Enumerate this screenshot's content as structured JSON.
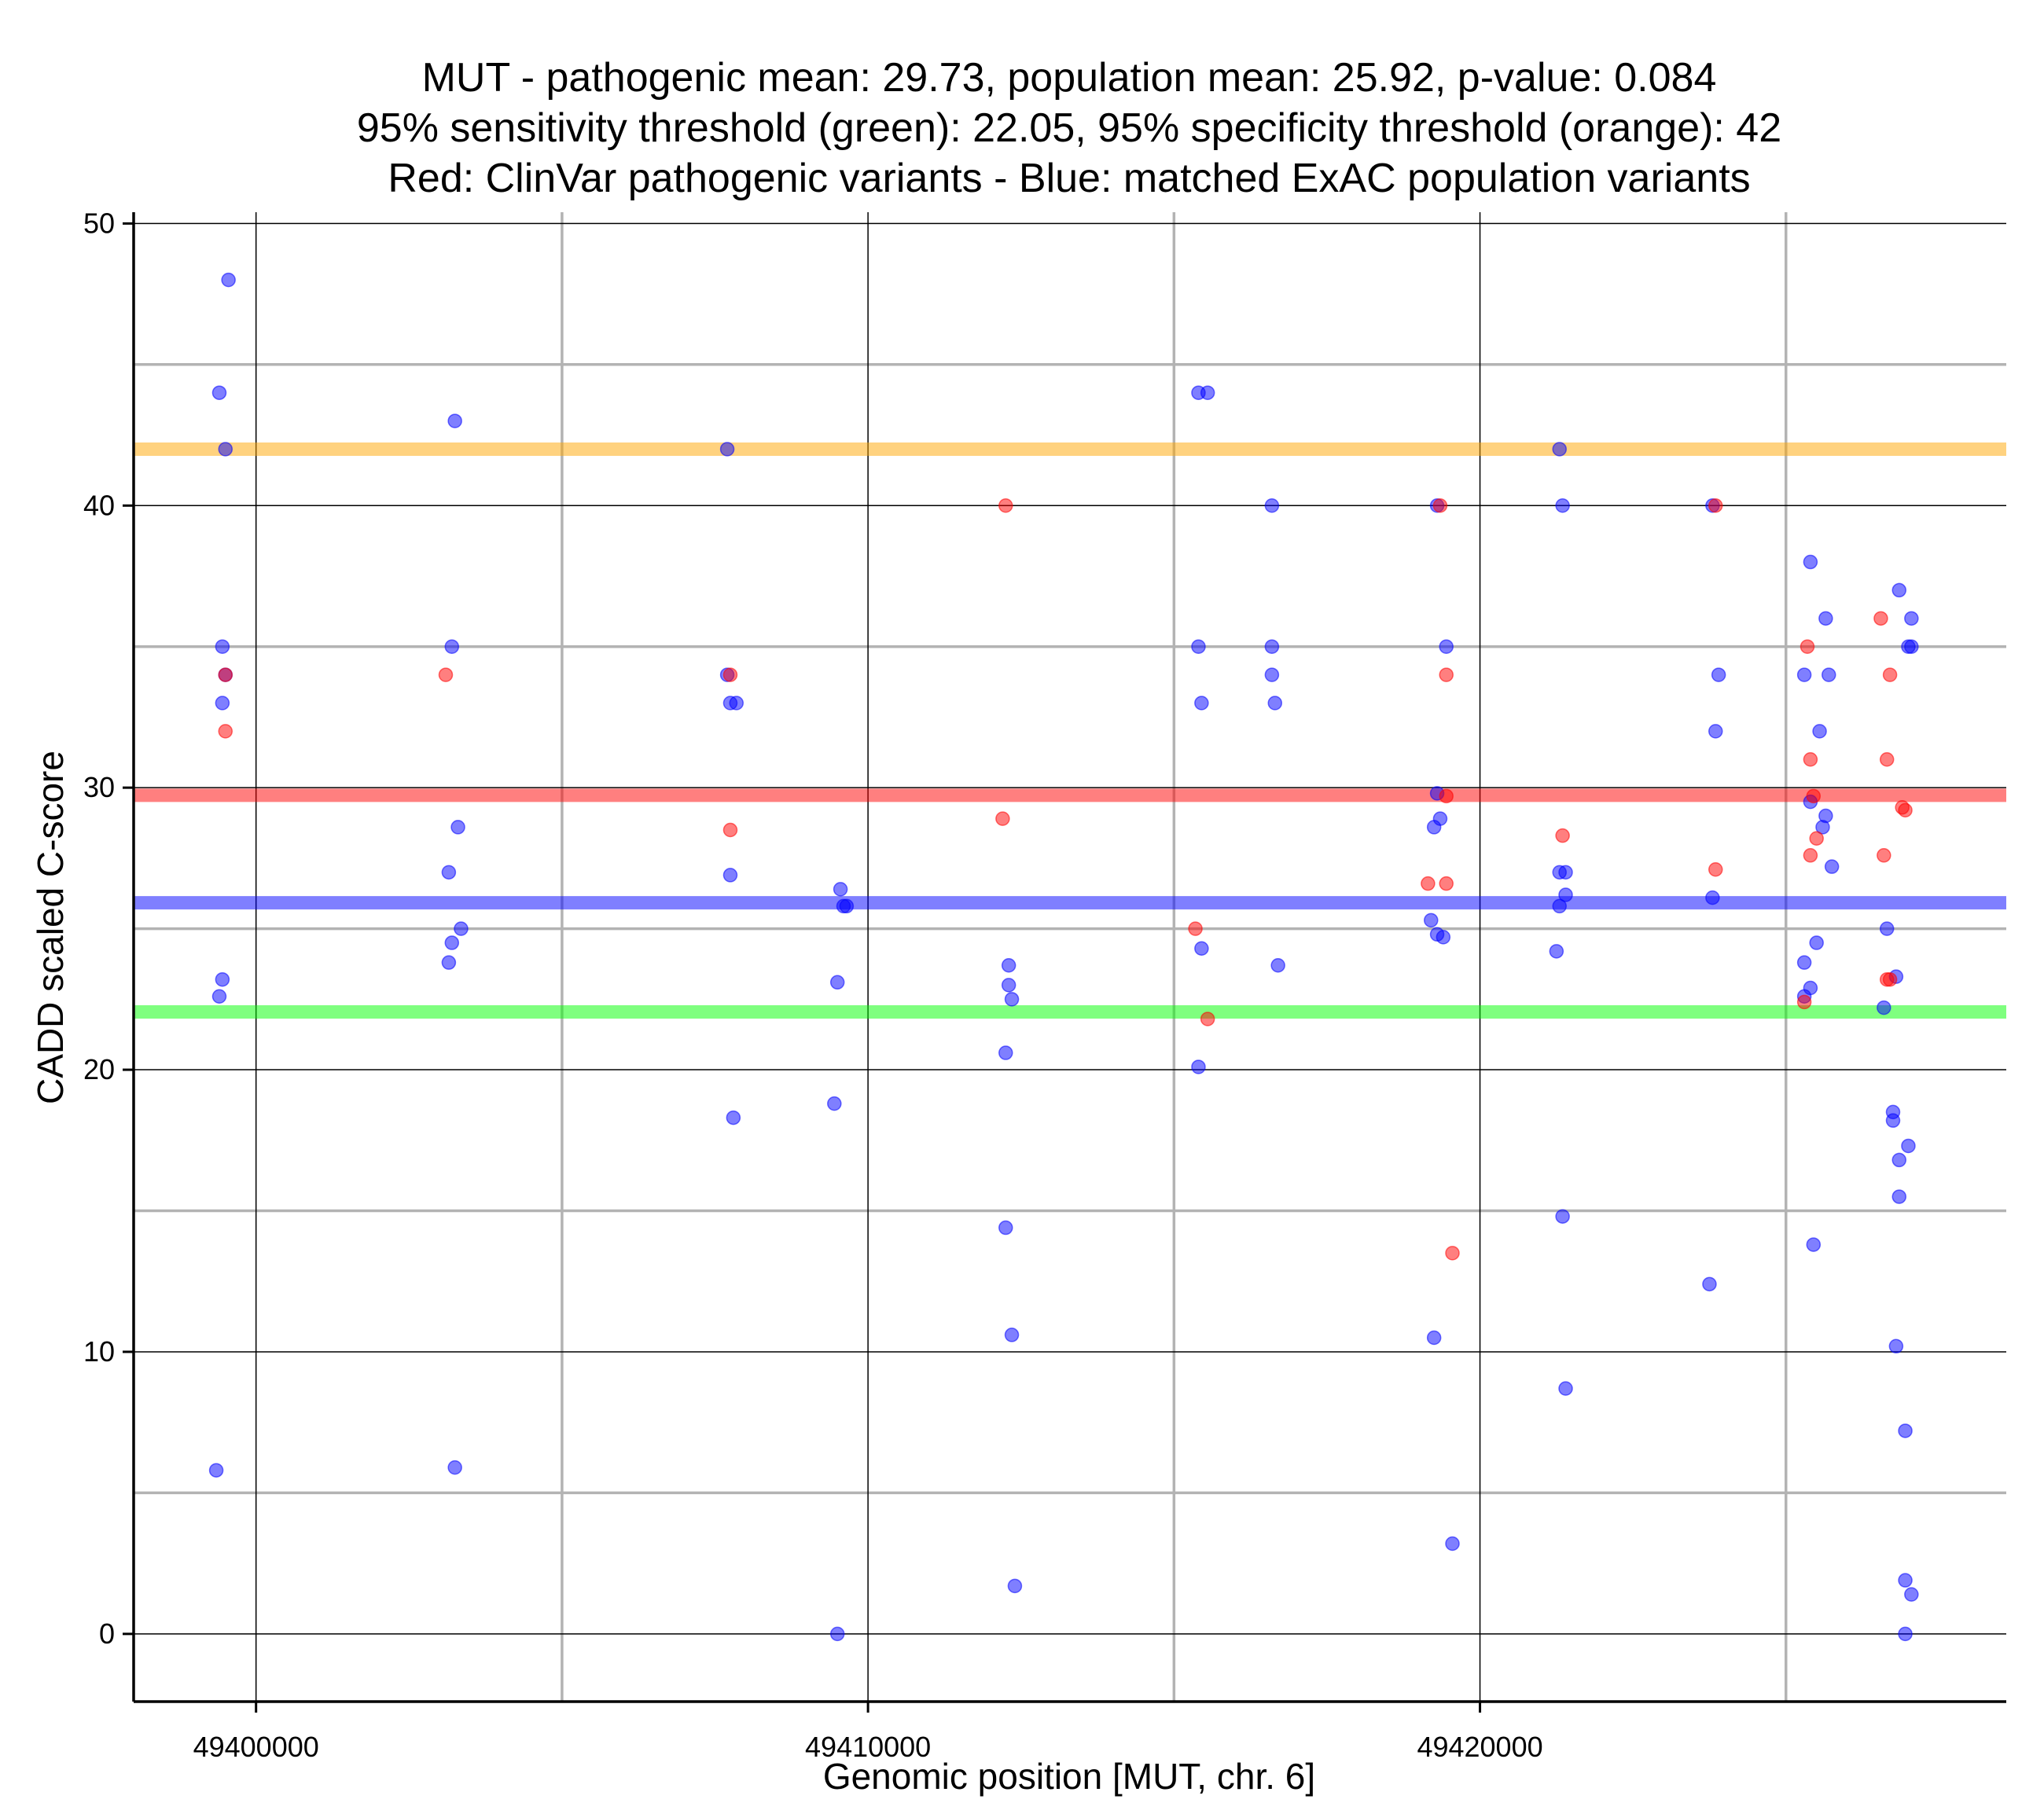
{
  "chart_data": {
    "type": "scatter",
    "title_lines": [
      "MUT - pathogenic mean: 29.73, population mean: 25.92, p-value: 0.084",
      "95% sensitivity threshold (green): 22.05, 95% specificity threshold (orange): 42",
      "Red: ClinVar pathogenic variants - Blue: matched ExAC population variants"
    ],
    "xlabel": "Genomic position [MUT, chr. 6]",
    "ylabel": "CADD scaled C-score",
    "xlim": [
      49398000,
      49428600
    ],
    "ylim": [
      -2.4,
      50.4
    ],
    "x_ticks": [
      49400000,
      49410000,
      49420000
    ],
    "x_tick_labels": [
      "49400000",
      "49410000",
      "49420000"
    ],
    "y_ticks": [
      0,
      10,
      20,
      30,
      40,
      50
    ],
    "y_tick_labels": [
      "0",
      "10",
      "20",
      "30",
      "40",
      "50"
    ],
    "x_minor_gridlines": [
      49405000,
      49415000,
      49425000
    ],
    "y_minor_gridlines": [
      5,
      15,
      25,
      35,
      45
    ],
    "reference_lines": [
      {
        "name": "95% specificity threshold",
        "y": 42,
        "color": "#FFA500"
      },
      {
        "name": "pathogenic mean",
        "y": 29.73,
        "color": "#FF0000"
      },
      {
        "name": "population mean",
        "y": 25.92,
        "color": "#0000FF"
      },
      {
        "name": "95% sensitivity threshold",
        "y": 22.05,
        "color": "#00FF00"
      }
    ],
    "series": [
      {
        "name": "ExAC population variants",
        "color": "#0000FF",
        "points": [
          [
            49399550,
            48
          ],
          [
            49399400,
            44
          ],
          [
            49399500,
            42
          ],
          [
            49399450,
            35
          ],
          [
            49399500,
            34
          ],
          [
            49399450,
            33
          ],
          [
            49399450,
            23.2
          ],
          [
            49399400,
            22.6
          ],
          [
            49399350,
            5.8
          ],
          [
            49403250,
            43
          ],
          [
            49403200,
            35
          ],
          [
            49403300,
            28.6
          ],
          [
            49403150,
            27
          ],
          [
            49403350,
            25
          ],
          [
            49403200,
            24.5
          ],
          [
            49403150,
            23.8
          ],
          [
            49403250,
            5.9
          ],
          [
            49407700,
            42
          ],
          [
            49407700,
            34
          ],
          [
            49407750,
            33
          ],
          [
            49407850,
            33
          ],
          [
            49407750,
            26.9
          ],
          [
            49407800,
            18.3
          ],
          [
            49409550,
            26.4
          ],
          [
            49409600,
            25.8
          ],
          [
            49409650,
            25.8
          ],
          [
            49409500,
            23.1
          ],
          [
            49409450,
            18.8
          ],
          [
            49409500,
            0
          ],
          [
            49412300,
            23.7
          ],
          [
            49412300,
            23
          ],
          [
            49412350,
            22.5
          ],
          [
            49412250,
            20.6
          ],
          [
            49412250,
            14.4
          ],
          [
            49412350,
            10.6
          ],
          [
            49412400,
            1.7
          ],
          [
            49415400,
            44
          ],
          [
            49415550,
            44
          ],
          [
            49415400,
            35
          ],
          [
            49415450,
            33
          ],
          [
            49415450,
            24.3
          ],
          [
            49415400,
            20.1
          ],
          [
            49416600,
            40
          ],
          [
            49416600,
            35
          ],
          [
            49416600,
            34
          ],
          [
            49416650,
            33
          ],
          [
            49416700,
            23.7
          ],
          [
            49419300,
            40
          ],
          [
            49419300,
            29.8
          ],
          [
            49419350,
            28.9
          ],
          [
            49419250,
            28.6
          ],
          [
            49419200,
            25.3
          ],
          [
            49419300,
            24.8
          ],
          [
            49419400,
            24.7
          ],
          [
            49419450,
            35
          ],
          [
            49419250,
            10.5
          ],
          [
            49419550,
            3.2
          ],
          [
            49421300,
            42
          ],
          [
            49421350,
            40
          ],
          [
            49421300,
            27
          ],
          [
            49421400,
            27
          ],
          [
            49421400,
            26.2
          ],
          [
            49421300,
            25.8
          ],
          [
            49421250,
            24.2
          ],
          [
            49421350,
            14.8
          ],
          [
            49421400,
            8.7
          ],
          [
            49423800,
            40
          ],
          [
            49423900,
            34
          ],
          [
            49423850,
            32
          ],
          [
            49423800,
            26.1
          ],
          [
            49423750,
            12.4
          ],
          [
            49425400,
            38
          ],
          [
            49425300,
            34
          ],
          [
            49425400,
            29.5
          ],
          [
            49425550,
            32
          ],
          [
            49425650,
            36
          ],
          [
            49425700,
            34
          ],
          [
            49425650,
            29
          ],
          [
            49425600,
            28.6
          ],
          [
            49425750,
            27.2
          ],
          [
            49425500,
            24.5
          ],
          [
            49425300,
            23.8
          ],
          [
            49425400,
            22.9
          ],
          [
            49425300,
            22.6
          ],
          [
            49425450,
            13.8
          ],
          [
            49426850,
            37
          ],
          [
            49427050,
            36
          ],
          [
            49427000,
            35
          ],
          [
            49427050,
            35
          ],
          [
            49426650,
            25
          ],
          [
            49426800,
            23.3
          ],
          [
            49426600,
            22.2
          ],
          [
            49426750,
            18.5
          ],
          [
            49426750,
            18.2
          ],
          [
            49427000,
            17.3
          ],
          [
            49426850,
            16.8
          ],
          [
            49426850,
            15.5
          ],
          [
            49426800,
            10.2
          ],
          [
            49426950,
            7.2
          ],
          [
            49426950,
            1.9
          ],
          [
            49427050,
            1.4
          ],
          [
            49426950,
            0
          ]
        ]
      },
      {
        "name": "ClinVar pathogenic variants",
        "color": "#FF0000",
        "points": [
          [
            49399500,
            34
          ],
          [
            49399500,
            32
          ],
          [
            49403100,
            34
          ],
          [
            49407750,
            34
          ],
          [
            49407750,
            28.5
          ],
          [
            49412250,
            40
          ],
          [
            49412200,
            28.9
          ],
          [
            49415350,
            25
          ],
          [
            49415550,
            21.8
          ],
          [
            49419350,
            40
          ],
          [
            49419450,
            29.7
          ],
          [
            49419150,
            26.6
          ],
          [
            49419450,
            26.6
          ],
          [
            49419450,
            34
          ],
          [
            49419550,
            13.5
          ],
          [
            49421350,
            28.3
          ],
          [
            49423850,
            40
          ],
          [
            49423850,
            27.1
          ],
          [
            49425350,
            35
          ],
          [
            49425400,
            31
          ],
          [
            49425450,
            29.7
          ],
          [
            49425500,
            28.2
          ],
          [
            49425400,
            27.6
          ],
          [
            49425300,
            22.4
          ],
          [
            49426550,
            36
          ],
          [
            49426700,
            34
          ],
          [
            49426650,
            31
          ],
          [
            49426900,
            29.3
          ],
          [
            49426950,
            29.2
          ],
          [
            49426600,
            27.6
          ],
          [
            49426650,
            23.2
          ],
          [
            49426700,
            23.2
          ]
        ]
      }
    ]
  }
}
